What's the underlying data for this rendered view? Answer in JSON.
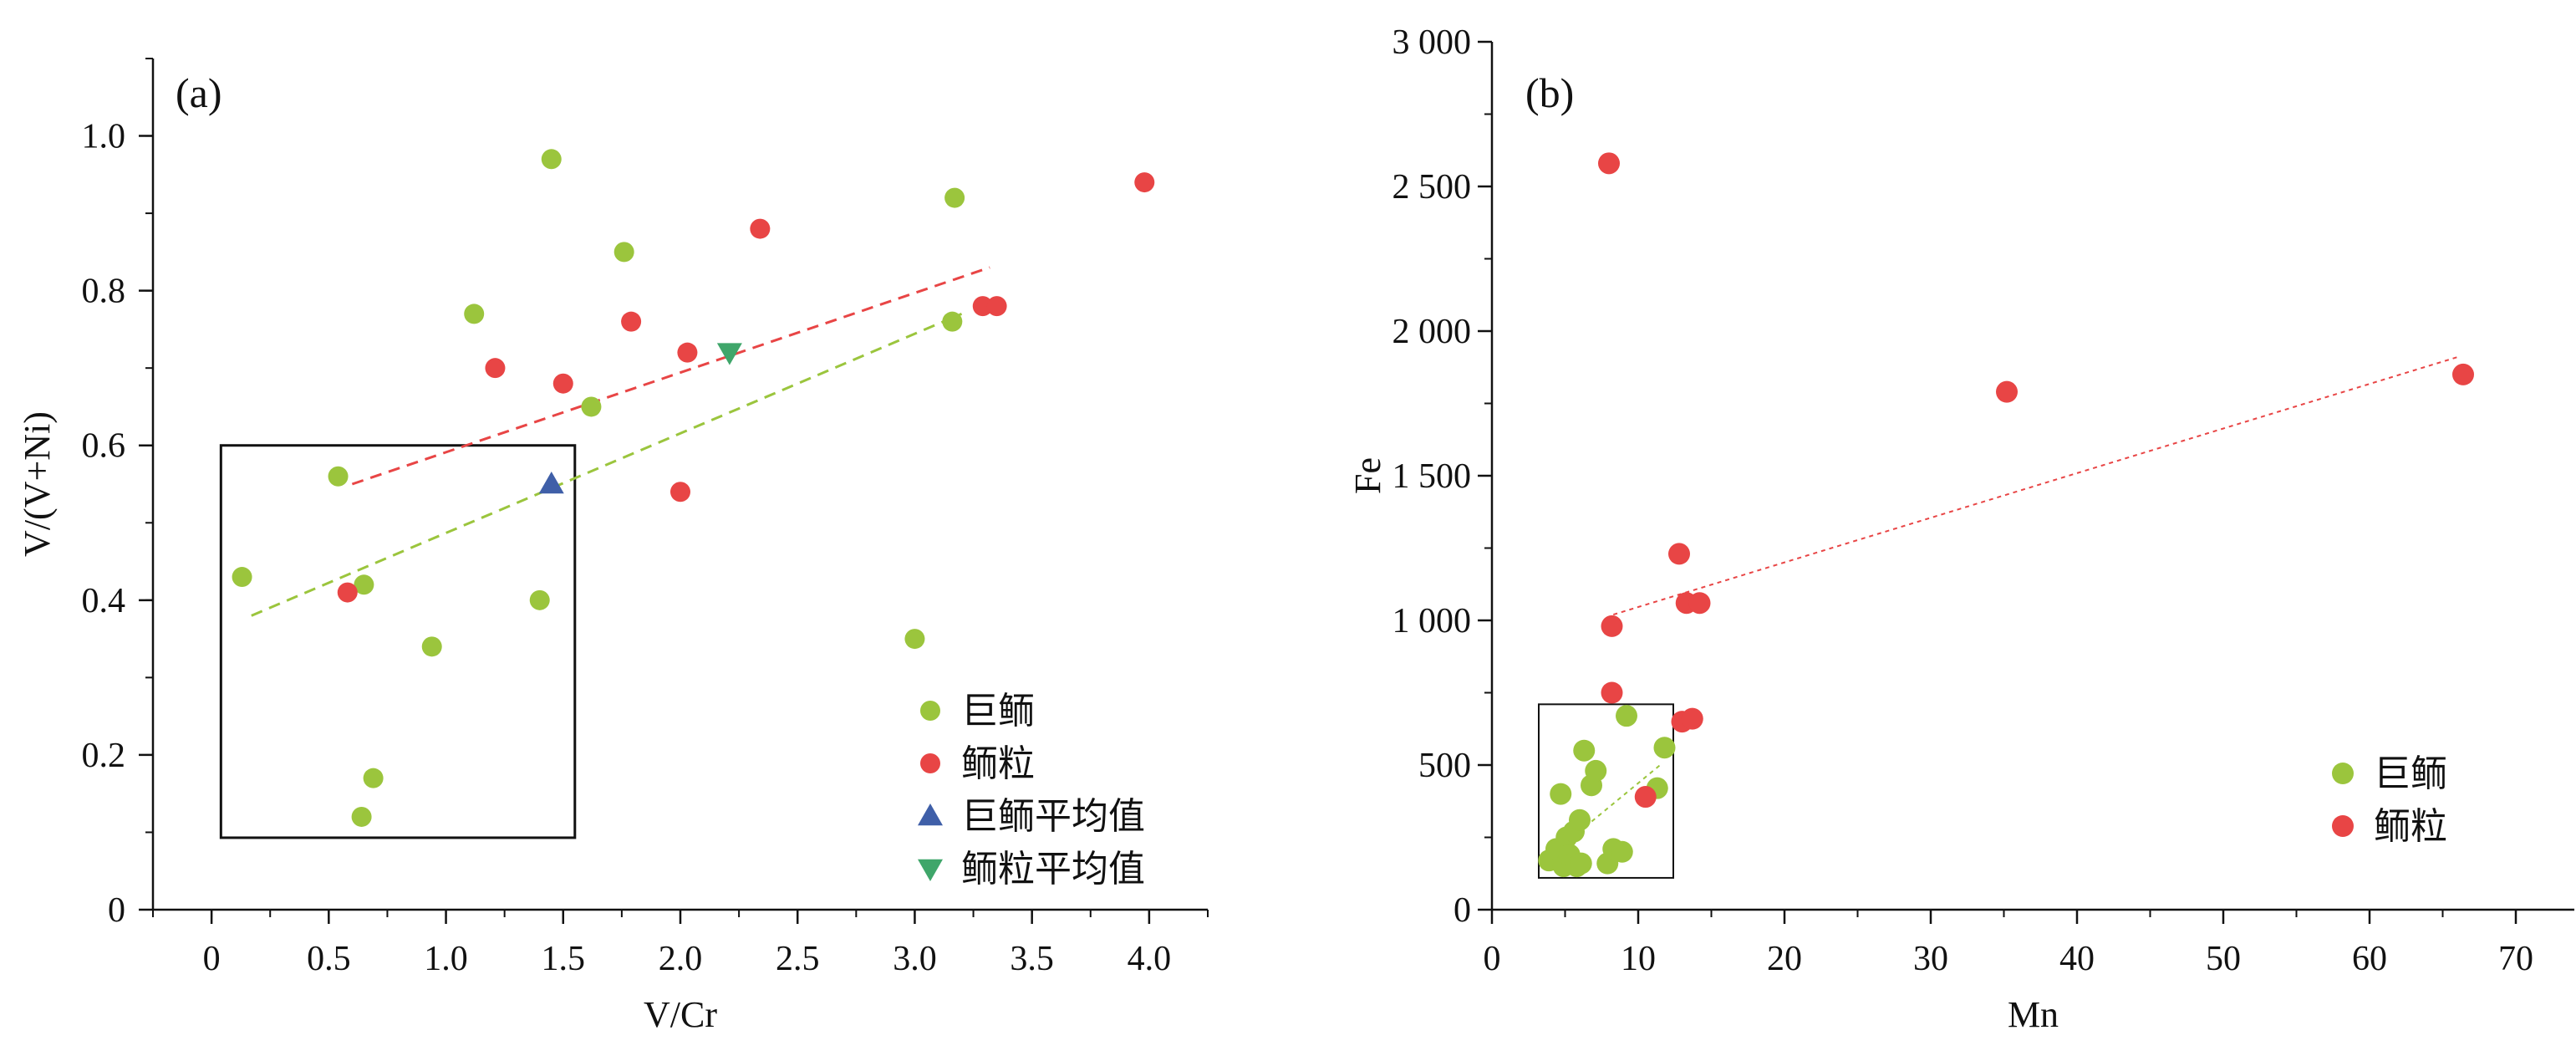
{
  "colors": {
    "green": "#9BC53D",
    "red": "#E84545",
    "blue": "#3F5FA8",
    "teal": "#3FA66A",
    "axis": "#111111"
  },
  "chart_data": [
    {
      "type": "scatter",
      "panel_label": "(a)",
      "xlabel": "V/Cr",
      "ylabel": "V/(V+Ni)",
      "xlim": [
        -0.25,
        4.25
      ],
      "ylim": [
        0,
        1.1
      ],
      "xticks": [
        0,
        0.5,
        1.0,
        1.5,
        2.0,
        2.5,
        3.0,
        3.5,
        4.0
      ],
      "xtick_labels": [
        "0",
        "0.5",
        "1.0",
        "1.5",
        "2.0",
        "2.5",
        "3.0",
        "3.5",
        "4.0"
      ],
      "yticks": [
        0,
        0.2,
        0.4,
        0.6,
        0.8,
        1.0
      ],
      "ytick_labels": [
        "0",
        "0.2",
        "0.4",
        "0.6",
        "0.8",
        "1.0"
      ],
      "grid": false,
      "legend_position": "bottom-right",
      "series": [
        {
          "name": "巨鲕",
          "color": "#9BC53D",
          "marker": "circle",
          "x": [
            0.13,
            0.54,
            0.65,
            0.69,
            0.94,
            1.12,
            1.4,
            1.45,
            1.62,
            1.76,
            3.0,
            3.16,
            3.17
          ],
          "y": [
            0.43,
            0.56,
            0.42,
            0.17,
            0.34,
            0.77,
            0.4,
            0.97,
            0.65,
            0.85,
            0.35,
            0.76,
            0.92
          ],
          "trend": {
            "x": [
              0.17,
              3.2
            ],
            "y": [
              0.38,
              0.77
            ],
            "style": "dashed"
          }
        },
        {
          "name": "鲕粒",
          "color": "#E84545",
          "marker": "circle",
          "x": [
            0.58,
            1.21,
            1.5,
            1.79,
            2.0,
            2.03,
            2.34,
            3.29,
            3.35,
            3.98
          ],
          "y": [
            0.41,
            0.7,
            0.68,
            0.76,
            0.54,
            0.72,
            0.88,
            0.78,
            0.78,
            0.94
          ],
          "trend": {
            "x": [
              0.6,
              3.32
            ],
            "y": [
              0.55,
              0.83
            ],
            "style": "dashed"
          }
        },
        {
          "name": "巨鲕平均值",
          "color": "#3F5FA8",
          "marker": "triangle-up",
          "x": [
            1.45
          ],
          "y": [
            0.55
          ]
        },
        {
          "name": "鲕粒平均值",
          "color": "#3FA66A",
          "marker": "triangle-down",
          "x": [
            2.21
          ],
          "y": [
            0.72
          ]
        }
      ],
      "extra_point": {
        "series": "巨鲕",
        "x": 0.64,
        "y": 0.12
      },
      "highlight_box": {
        "x0": 0.04,
        "x1": 1.55,
        "y0": 0.093,
        "y1": 0.6
      }
    },
    {
      "type": "scatter",
      "panel_label": "(b)",
      "xlabel": "Mn",
      "ylabel": "Fe",
      "xlim": [
        0,
        74
      ],
      "ylim": [
        0,
        3000
      ],
      "xticks": [
        0,
        10,
        20,
        30,
        40,
        50,
        60,
        70
      ],
      "xtick_labels": [
        "0",
        "10",
        "20",
        "30",
        "40",
        "50",
        "60",
        "70"
      ],
      "yticks": [
        0,
        500,
        1000,
        1500,
        2000,
        2500,
        3000
      ],
      "ytick_labels": [
        "0",
        "500",
        "1 000",
        "1 500",
        "2 000",
        "2 500",
        "3 000"
      ],
      "grid": false,
      "legend_position": "bottom-right",
      "series": [
        {
          "name": "巨鲕",
          "color": "#9BC53D",
          "marker": "circle",
          "x": [
            3.9,
            4.4,
            4.7,
            4.9,
            5.1,
            5.3,
            5.5,
            5.6,
            5.8,
            6.0,
            6.1,
            6.3,
            6.8,
            7.1,
            7.9,
            8.3,
            8.9,
            9.2,
            11.3,
            11.8
          ],
          "y": [
            170,
            210,
            400,
            150,
            250,
            190,
            160,
            270,
            150,
            310,
            160,
            550,
            430,
            480,
            160,
            210,
            200,
            670,
            420,
            560
          ],
          "trend": {
            "x": [
              5.5,
              11.5
            ],
            "y": [
              250,
              500
            ],
            "style": "dotted"
          }
        },
        {
          "name": "鲕粒",
          "color": "#E84545",
          "marker": "circle",
          "x": [
            8.0,
            8.2,
            8.2,
            10.5,
            12.8,
            13.0,
            13.3,
            13.7,
            14.2,
            35.2,
            66.4
          ],
          "y": [
            2580,
            980,
            750,
            390,
            1230,
            650,
            1060,
            660,
            1060,
            1790,
            1850
          ],
          "trend": {
            "x": [
              8.3,
              66.0
            ],
            "y": [
              1020,
              1910
            ],
            "style": "dotted"
          }
        }
      ],
      "highlight_box": {
        "x0": 3.2,
        "x1": 12.4,
        "y0": 110,
        "y1": 710
      }
    }
  ]
}
